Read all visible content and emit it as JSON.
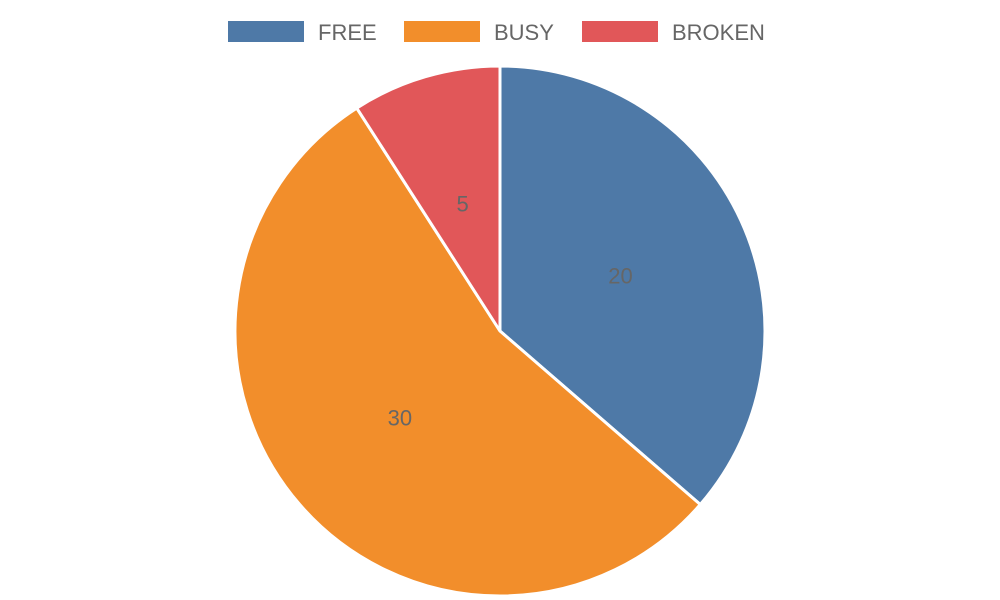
{
  "chart_data": {
    "type": "pie",
    "categories": [
      "FREE",
      "BUSY",
      "BROKEN"
    ],
    "values": [
      20,
      30,
      5
    ],
    "colors": [
      "#4e79a7",
      "#f28e2b",
      "#e15759"
    ],
    "legend_position": "top",
    "start_angle_deg": 0,
    "direction": "clockwise"
  }
}
